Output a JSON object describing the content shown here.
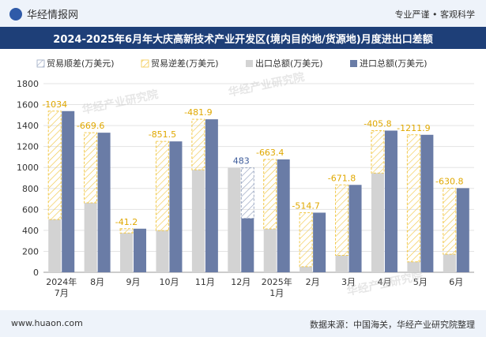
{
  "header": {
    "brand": "华经情报网",
    "tagline": "专业严谨 • 客观科学"
  },
  "title": "2024-2025年6月年大庆高新技术产业开发区(境内目的地/货源地)月度进出口差额",
  "legend": {
    "surplus": "贸易顺差(万美元)",
    "deficit": "贸易逆差(万美元)",
    "export": "出口总额(万美元)",
    "import": "进口总额(万美元)"
  },
  "watermark": "华经产业研究院",
  "footer": {
    "url": "www.huaon.com",
    "source": "数据来源：中国海关，华经产业研究院整理"
  },
  "colors": {
    "export": "#d3d3d3",
    "import": "#6a7ca6",
    "deficit_stroke": "#f2c94c",
    "surplus_stroke": "#9aa7c2",
    "label_deficit": "#e0a800",
    "label_surplus": "#3b5a9a",
    "header_bg": "#1e3f78"
  },
  "chart_data": {
    "type": "bar",
    "categories": [
      "2024年\n7月",
      "8月",
      "9月",
      "10月",
      "11月",
      "12月",
      "2025年\n1月",
      "2月",
      "3月",
      "4月",
      "5月",
      "6月"
    ],
    "series": [
      {
        "name": "出口总额(万美元)",
        "values": [
          504,
          663,
          375,
          397,
          978,
          997,
          414,
          54,
          162,
          947,
          100,
          172
        ]
      },
      {
        "name": "进口总额(万美元)",
        "values": [
          1538,
          1332,
          416,
          1249,
          1460,
          514,
          1077,
          569,
          834,
          1352,
          1312,
          803
        ]
      }
    ],
    "balance": [
      {
        "value": -1034,
        "label": "-1034"
      },
      {
        "value": -669.6,
        "label": "-669.6"
      },
      {
        "value": -41.2,
        "label": "-41.2"
      },
      {
        "value": -851.5,
        "label": "-851.5"
      },
      {
        "value": -481.9,
        "label": "-481.9"
      },
      {
        "value": 483,
        "label": "483"
      },
      {
        "value": -663.4,
        "label": "-663.4"
      },
      {
        "value": -514.7,
        "label": "-514.7"
      },
      {
        "value": -671.8,
        "label": "-671.8"
      },
      {
        "value": -405.8,
        "label": "-405.8"
      },
      {
        "value": -1211.9,
        "label": "-1211.9"
      },
      {
        "value": -630.8,
        "label": "-630.8"
      }
    ],
    "ylim": [
      0,
      1800
    ],
    "yticks": [
      0,
      200,
      400,
      600,
      800,
      1000,
      1200,
      1400,
      1600,
      1800
    ],
    "grid": true,
    "legend_position": "top"
  }
}
